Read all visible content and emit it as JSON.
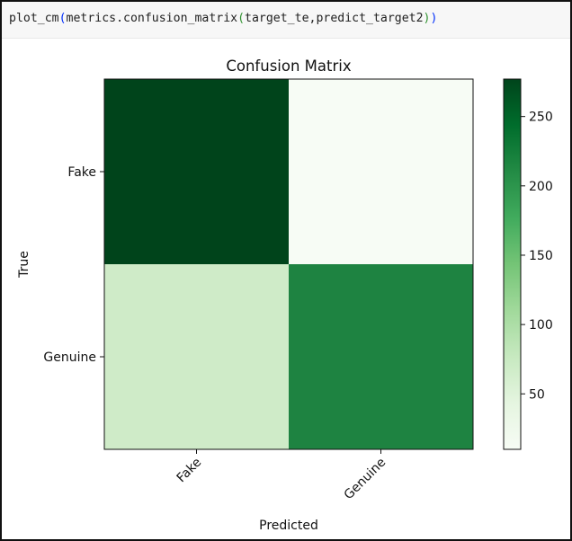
{
  "code_cell": {
    "fn": "plot_cm",
    "p1_open": "(",
    "call": "metrics.confusion_matrix",
    "p2_open": "(",
    "args": "target_te,predict_target2",
    "p2_close": ")",
    "p1_close": ")"
  },
  "chart_data": {
    "type": "heatmap",
    "title": "Confusion Matrix",
    "xlabel": "Predicted",
    "ylabel": "True",
    "x_categories": [
      "Fake",
      "Genuine"
    ],
    "y_categories": [
      "Fake",
      "Genuine"
    ],
    "values": [
      [
        277,
        10
      ],
      [
        60,
        215
      ]
    ],
    "colormap": "Greens",
    "color_range": [
      10,
      277
    ],
    "colorbar_ticks": [
      50,
      100,
      150,
      200,
      250
    ],
    "colors": {
      "cells": [
        [
          "#00441b",
          "#f7fcf5"
        ],
        [
          "#cfebc8",
          "#1e8341"
        ]
      ],
      "colorbar_gradient": [
        "#f7fcf5",
        "#e5f5e0",
        "#c7e9c0",
        "#a1d99b",
        "#74c476",
        "#41ab5d",
        "#238b45",
        "#006d2c",
        "#00441b"
      ]
    },
    "x_tick_rotation_deg": 45,
    "grid": false
  }
}
